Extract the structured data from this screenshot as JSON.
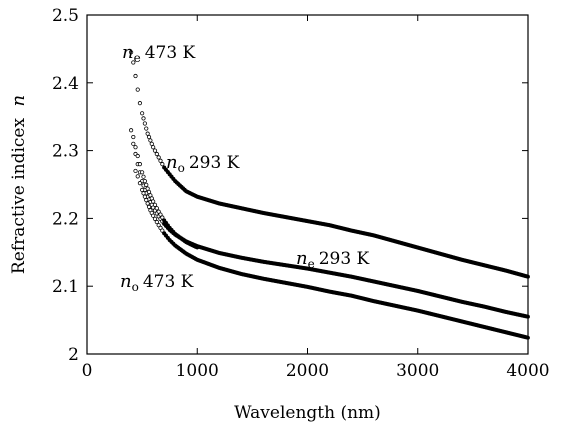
{
  "chart_data": {
    "type": "scatter",
    "title": "",
    "xlabel": "Wavelength (nm)",
    "ylabel_text": "Refractive indicex",
    "ylabel_symbol": "n",
    "xlim": [
      0,
      4000
    ],
    "ylim": [
      2.0,
      2.5
    ],
    "xticks": [
      0,
      1000,
      2000,
      3000,
      4000
    ],
    "xtick_labels": [
      "0",
      "1000",
      "2000",
      "3000",
      "4000"
    ],
    "yticks": [
      2.0,
      2.1,
      2.2,
      2.3,
      2.4,
      2.5
    ],
    "ytick_labels": [
      "2",
      "2.1",
      "2.2",
      "2.3",
      "2.4",
      "2.5"
    ],
    "grid": false,
    "legend": "none",
    "series": [
      {
        "name": "ne 473 K",
        "x": [
          400,
          420,
          440,
          460,
          480,
          500,
          525,
          550,
          575,
          600,
          650,
          700,
          750,
          800,
          900,
          1000,
          1200,
          1400,
          1600,
          1800,
          2000,
          2200,
          2400,
          2600,
          2800,
          3000,
          3200,
          3400,
          3600,
          3800,
          4000
        ],
        "y": [
          2.445,
          2.43,
          2.41,
          2.39,
          2.37,
          2.355,
          2.34,
          2.325,
          2.315,
          2.305,
          2.29,
          2.275,
          2.265,
          2.255,
          2.24,
          2.232,
          2.222,
          2.215,
          2.208,
          2.202,
          2.196,
          2.19,
          2.182,
          2.175,
          2.166,
          2.157,
          2.148,
          2.139,
          2.131,
          2.123,
          2.114
        ]
      },
      {
        "name": "no 293 K",
        "x": [
          400,
          420,
          440,
          460,
          480,
          500,
          525,
          550,
          575,
          600,
          650,
          700,
          750,
          800,
          900,
          1000,
          1200,
          1400,
          1600,
          1800,
          2000,
          2200,
          2400,
          2600,
          2800,
          3000,
          3200,
          3400,
          3600,
          3800,
          4000
        ],
        "y": [
          2.33,
          2.31,
          2.295,
          2.28,
          2.268,
          2.255,
          2.242,
          2.232,
          2.224,
          2.216,
          2.203,
          2.192,
          2.183,
          2.176,
          2.166,
          2.159,
          2.149,
          2.142,
          2.136,
          2.131,
          2.126,
          2.12,
          2.114,
          2.107,
          2.1,
          2.093,
          2.085,
          2.077,
          2.07,
          2.062,
          2.055
        ]
      },
      {
        "name": "ne 293 K",
        "x": [
          440,
          460,
          480,
          500,
          525,
          550,
          575,
          600,
          650,
          700,
          750,
          800,
          900,
          1000,
          1200,
          1400,
          1600,
          1800,
          2000,
          2200,
          2400,
          2600,
          2800,
          3000,
          3200,
          3400,
          3600,
          3800,
          4000
        ],
        "y": [
          2.27,
          2.262,
          2.252,
          2.242,
          2.232,
          2.222,
          2.212,
          2.204,
          2.19,
          2.178,
          2.168,
          2.16,
          2.148,
          2.139,
          2.127,
          2.118,
          2.111,
          2.105,
          2.099,
          2.092,
          2.086,
          2.078,
          2.071,
          2.064,
          2.056,
          2.048,
          2.04,
          2.032,
          2.024
        ]
      },
      {
        "name": "no 473 K",
        "x": [
          420,
          440,
          460,
          480,
          500,
          525,
          550,
          575,
          600,
          650,
          700,
          750,
          800,
          900,
          1000
        ],
        "y": [
          2.32,
          2.305,
          2.292,
          2.28,
          2.268,
          2.255,
          2.244,
          2.234,
          2.225,
          2.21,
          2.197,
          2.186,
          2.177,
          2.165,
          2.157
        ]
      }
    ],
    "annotations": [
      {
        "symbol": "n",
        "sub": "e",
        "text": "473 K"
      },
      {
        "symbol": "n",
        "sub": "o",
        "text": "293 K"
      },
      {
        "symbol": "n",
        "sub": "e",
        "text": "293 K"
      },
      {
        "symbol": "n",
        "sub": "o",
        "text": "473 K"
      }
    ]
  }
}
